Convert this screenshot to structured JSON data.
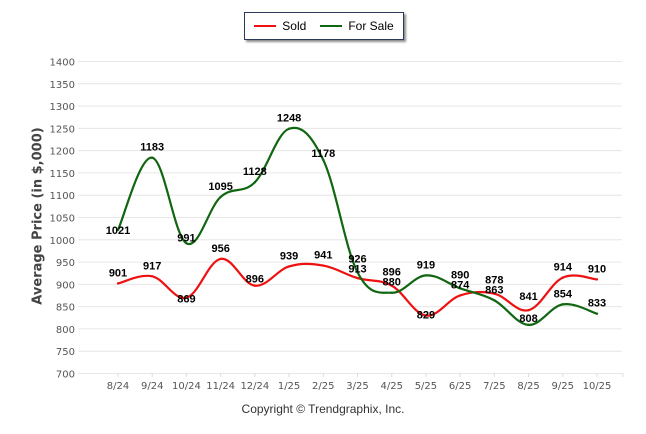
{
  "chart_data": {
    "type": "line",
    "title": "",
    "xlabel": "",
    "ylabel": "Average Price (in $,000)",
    "ylim": [
      700,
      1400
    ],
    "yticks": [
      700,
      750,
      800,
      850,
      900,
      950,
      1000,
      1050,
      1100,
      1150,
      1200,
      1250,
      1300,
      1350,
      1400
    ],
    "grid": true,
    "legend_position": "top-center",
    "categories": [
      "8/24",
      "9/24",
      "10/24",
      "11/24",
      "12/24",
      "1/25",
      "2/25",
      "3/25",
      "4/25",
      "5/25",
      "6/25",
      "7/25",
      "8/25",
      "9/25",
      "10/25"
    ],
    "series": [
      {
        "name": "Sold",
        "color": "#ee1111",
        "values": [
          901,
          917,
          869,
          956,
          896,
          939,
          941,
          913,
          896,
          829,
          874,
          878,
          841,
          914,
          910
        ]
      },
      {
        "name": "For Sale",
        "color": "#116611",
        "values": [
          1021,
          1183,
          991,
          1095,
          1128,
          1248,
          1178,
          926,
          880,
          919,
          890,
          863,
          808,
          854,
          833
        ]
      }
    ],
    "footer": "Copyright © Trendgraphix, Inc."
  }
}
